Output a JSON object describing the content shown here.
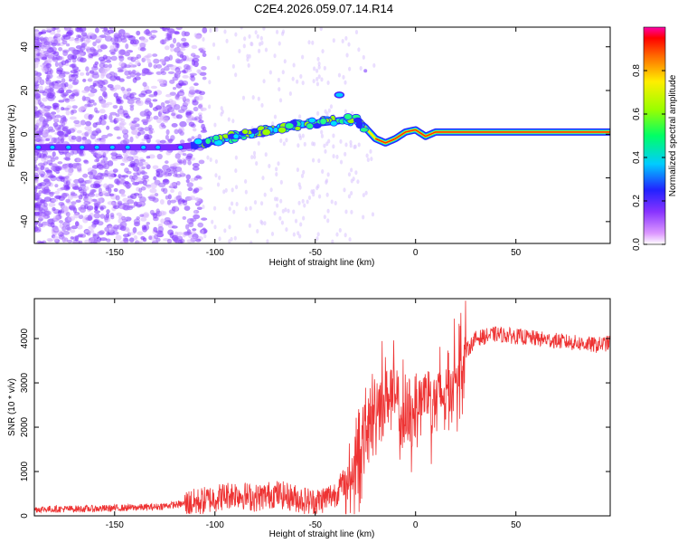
{
  "title": "C2E4.2026.059.07.14.R14",
  "colors": {
    "snr_line": "#ee3333",
    "axis": "#000000"
  },
  "chart_data": [
    {
      "type": "heatmap",
      "xlabel": "Height of straight line (km)",
      "ylabel": "Frequency (Hz)",
      "xlim": [
        -190,
        97
      ],
      "ylim": [
        -50,
        49
      ],
      "xticks": [
        -150,
        -100,
        -50,
        0,
        50
      ],
      "yticks": [
        -40,
        -20,
        0,
        20,
        40
      ],
      "colorbar": {
        "label": "Normalized spectral amplitude",
        "range": [
          0,
          1
        ],
        "ticks": [
          "0.0",
          "0.2",
          "0.4",
          "0.6",
          "0.8"
        ],
        "tick_values": [
          0,
          0.2,
          0.4,
          0.6,
          0.8
        ]
      },
      "ridge_points": [
        {
          "x": -190,
          "y": -6
        },
        {
          "x": -150,
          "y": -6
        },
        {
          "x": -120,
          "y": -6
        },
        {
          "x": -110,
          "y": -5
        },
        {
          "x": -100,
          "y": -3
        },
        {
          "x": -90,
          "y": -1
        },
        {
          "x": -80,
          "y": 1
        },
        {
          "x": -70,
          "y": 2
        },
        {
          "x": -60,
          "y": 4
        },
        {
          "x": -50,
          "y": 5
        },
        {
          "x": -40,
          "y": 6
        },
        {
          "x": -30,
          "y": 7
        },
        {
          "x": -25,
          "y": 3
        },
        {
          "x": -20,
          "y": -2
        },
        {
          "x": -15,
          "y": -4
        },
        {
          "x": -10,
          "y": -2
        },
        {
          "x": -5,
          "y": 1
        },
        {
          "x": 0,
          "y": 2
        },
        {
          "x": 5,
          "y": -1
        },
        {
          "x": 10,
          "y": 1
        },
        {
          "x": 97,
          "y": 1
        }
      ]
    },
    {
      "type": "line",
      "xlabel": "Height of straight line (km)",
      "ylabel": "SNR (10 * v/v)",
      "xlim": [
        -190,
        97
      ],
      "ylim": [
        0,
        4900
      ],
      "xticks": [
        -150,
        -100,
        -50,
        0,
        50
      ],
      "yticks": [
        0,
        1000,
        2000,
        3000,
        4000
      ],
      "envelope": [
        {
          "x": -190,
          "y": 150
        },
        {
          "x": -160,
          "y": 160
        },
        {
          "x": -130,
          "y": 200
        },
        {
          "x": -110,
          "y": 300
        },
        {
          "x": -100,
          "y": 400
        },
        {
          "x": -90,
          "y": 500
        },
        {
          "x": -80,
          "y": 400
        },
        {
          "x": -70,
          "y": 500
        },
        {
          "x": -60,
          "y": 400
        },
        {
          "x": -50,
          "y": 300
        },
        {
          "x": -40,
          "y": 500
        },
        {
          "x": -35,
          "y": 800
        },
        {
          "x": -30,
          "y": 1200
        },
        {
          "x": -25,
          "y": 1800
        },
        {
          "x": -20,
          "y": 2400
        },
        {
          "x": -15,
          "y": 2800
        },
        {
          "x": -10,
          "y": 2600
        },
        {
          "x": -5,
          "y": 2000
        },
        {
          "x": 0,
          "y": 2500
        },
        {
          "x": 5,
          "y": 2800
        },
        {
          "x": 10,
          "y": 2600
        },
        {
          "x": 15,
          "y": 2800
        },
        {
          "x": 20,
          "y": 3200
        },
        {
          "x": 25,
          "y": 3700
        },
        {
          "x": 30,
          "y": 4000
        },
        {
          "x": 40,
          "y": 4100
        },
        {
          "x": 50,
          "y": 4050
        },
        {
          "x": 60,
          "y": 4000
        },
        {
          "x": 70,
          "y": 3950
        },
        {
          "x": 80,
          "y": 3900
        },
        {
          "x": 90,
          "y": 3850
        },
        {
          "x": 97,
          "y": 3900
        }
      ]
    }
  ]
}
